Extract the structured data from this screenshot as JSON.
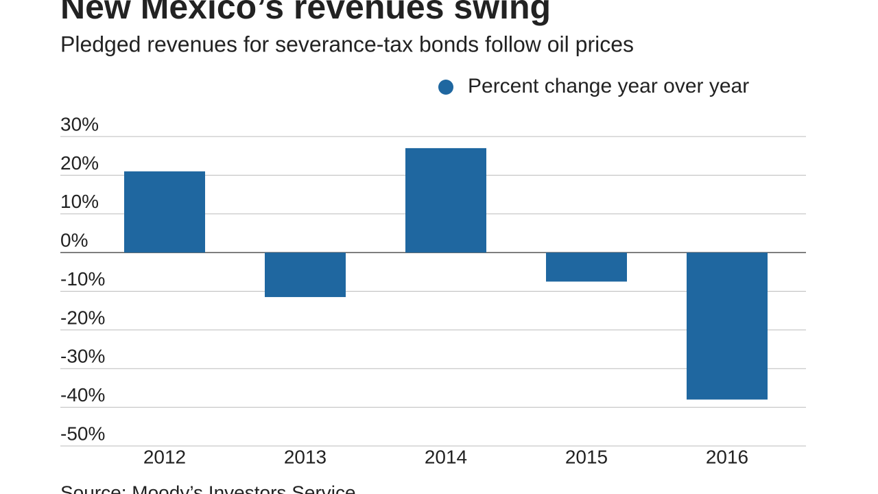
{
  "chart_data": {
    "type": "bar",
    "title": "New Mexico’s revenues swing",
    "subtitle": "Pledged revenues for severance-tax bonds follow oil prices",
    "source": "Source: Moody’s Investors Service",
    "categories": [
      "2012",
      "2013",
      "2014",
      "2015",
      "2016"
    ],
    "series": [
      {
        "name": "Percent change year over year",
        "color": "#1f67a0",
        "values": [
          21,
          -11.5,
          27,
          -7.5,
          -38
        ]
      }
    ],
    "ylim": [
      -50,
      30
    ],
    "yticks": [
      {
        "value": 30,
        "label": "30%"
      },
      {
        "value": 20,
        "label": "20%"
      },
      {
        "value": 10,
        "label": "10%"
      },
      {
        "value": 0,
        "label": "0%"
      },
      {
        "value": -10,
        "label": "-10%"
      },
      {
        "value": -20,
        "label": "-20%"
      },
      {
        "value": -30,
        "label": "-30%"
      },
      {
        "value": -40,
        "label": "-40%"
      },
      {
        "value": -50,
        "label": "-50%"
      }
    ],
    "grid": true
  }
}
